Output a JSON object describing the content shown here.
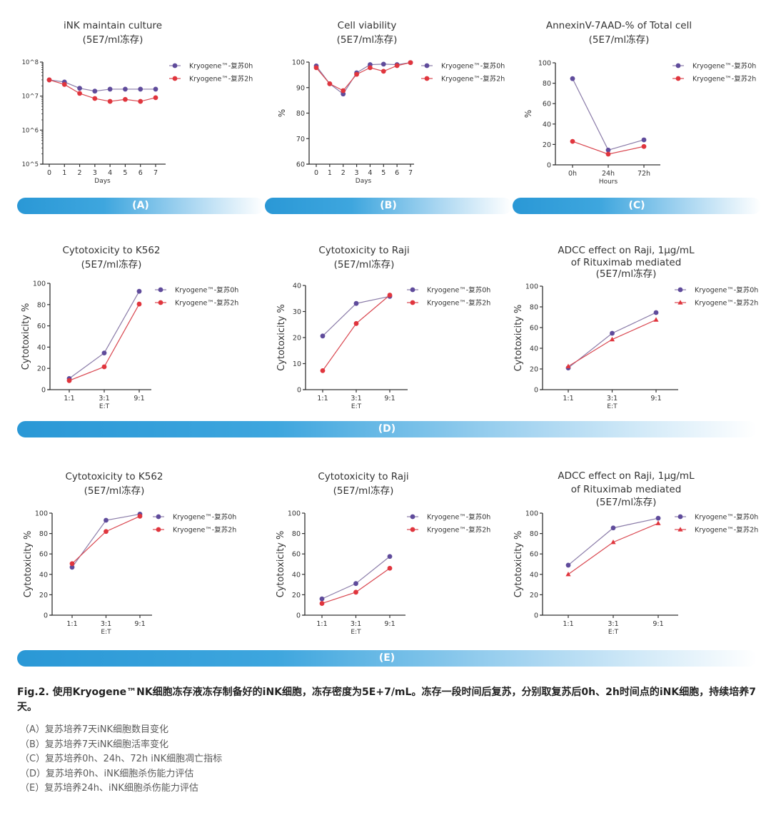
{
  "colors": {
    "series_0h": "#5f4b9b",
    "series_2h": "#e0353d",
    "line_0h": "#8a7ba8",
    "line_2h": "#d9464f",
    "band": "#2a98d6"
  },
  "bands": {
    "A": "(A)",
    "B": "(B)",
    "C": "(C)",
    "D": "(D)",
    "E": "(E)"
  },
  "chart_data": [
    {
      "type": "line",
      "panel": "A",
      "title": [
        "iNK maintain culture",
        "(5E7/ml冻存)"
      ],
      "xlabel": "Days",
      "ylabel": "",
      "x": [
        "0",
        "1",
        "2",
        "3",
        "4",
        "5",
        "6",
        "7"
      ],
      "yscale": "log",
      "ylim": [
        100000,
        100000000
      ],
      "yticks": [
        100000,
        1000000,
        10000000,
        100000000
      ],
      "ytick_labels": [
        "10^5",
        "10^6",
        "10^7",
        "10^8"
      ],
      "legend": "right",
      "series": [
        {
          "name": "Kryogene™-复苏0h",
          "marker": "circle",
          "values": [
            30000000,
            26000000,
            17000000,
            14000000,
            16000000,
            16000000,
            16000000,
            16000000
          ]
        },
        {
          "name": "Kryogene™-复苏2h",
          "marker": "circle",
          "values": [
            30000000,
            22000000,
            12000000,
            8500000,
            7000000,
            8000000,
            7000000,
            9000000
          ]
        }
      ]
    },
    {
      "type": "line",
      "panel": "B",
      "title": [
        "Cell viability",
        "(5E7/ml冻存)"
      ],
      "xlabel": "Days",
      "ylabel": "%",
      "x": [
        "0",
        "1",
        "2",
        "3",
        "4",
        "5",
        "6",
        "7"
      ],
      "yscale": "linear",
      "ylim": [
        60,
        100
      ],
      "yticks": [
        60,
        70,
        80,
        90,
        100
      ],
      "ytick_labels": [
        "60",
        "70",
        "80",
        "90",
        "100"
      ],
      "legend": "right",
      "series": [
        {
          "name": "Kryogene™-复苏0h",
          "marker": "circle",
          "values": [
            98.5,
            91.5,
            87.5,
            95.8,
            99,
            99.2,
            99,
            99.8
          ]
        },
        {
          "name": "Kryogene™-复苏2h",
          "marker": "circle",
          "values": [
            97.8,
            91.5,
            88.8,
            95.2,
            97.8,
            96.4,
            98.6,
            99.8
          ]
        }
      ]
    },
    {
      "type": "line",
      "panel": "C",
      "title": [
        "AnnexinV-7AAD-% of Total cell",
        "(5E7/ml冻存)"
      ],
      "xlabel": "Hours",
      "ylabel": "%",
      "x": [
        "0h",
        "24h",
        "72h"
      ],
      "yscale": "linear",
      "ylim": [
        0,
        100
      ],
      "yticks": [
        0,
        20,
        40,
        60,
        80,
        100
      ],
      "ytick_labels": [
        "0",
        "20",
        "40",
        "60",
        "80",
        "100"
      ],
      "legend": "right",
      "series": [
        {
          "name": "Kryogene™-复苏0h",
          "marker": "circle",
          "values": [
            84.5,
            14.5,
            24.5
          ]
        },
        {
          "name": "Kryogene™-复苏2h",
          "marker": "circle",
          "values": [
            23,
            10.5,
            18
          ]
        }
      ]
    },
    {
      "type": "line",
      "panel": "D1",
      "title": [
        "Cytotoxicity to K562",
        "(5E7/ml冻存)"
      ],
      "xlabel": "E:T",
      "ylabel": "Cytotoxicity %",
      "x": [
        "1:1",
        "3:1",
        "9:1"
      ],
      "yscale": "linear",
      "ylim": [
        0,
        100
      ],
      "yticks": [
        0,
        20,
        40,
        60,
        80,
        100
      ],
      "ytick_labels": [
        "0",
        "20",
        "40",
        "60",
        "80",
        "100"
      ],
      "legend": "right",
      "series": [
        {
          "name": "Kryogene™-复苏0h",
          "marker": "circle",
          "values": [
            10.5,
            34.5,
            92.5
          ]
        },
        {
          "name": "Kryogene™-复苏2h",
          "marker": "circle",
          "values": [
            8.5,
            21.5,
            80.5
          ]
        }
      ]
    },
    {
      "type": "line",
      "panel": "D2",
      "title": [
        "Cytotoxicity to Raji",
        "(5E7/ml冻存)"
      ],
      "xlabel": "E:T",
      "ylabel": "Cytotoxicity %",
      "x": [
        "1:1",
        "3:1",
        "9:1"
      ],
      "yscale": "linear",
      "ylim": [
        0,
        40
      ],
      "yticks": [
        0,
        10,
        20,
        30,
        40
      ],
      "ytick_labels": [
        "0",
        "10",
        "20",
        "30",
        "40"
      ],
      "legend": "right",
      "series": [
        {
          "name": "Kryogene™-复苏0h",
          "marker": "circle",
          "values": [
            20.6,
            33.1,
            35.8
          ]
        },
        {
          "name": "Kryogene™-复苏2h",
          "marker": "circle",
          "values": [
            7.3,
            25.4,
            36.3
          ]
        }
      ]
    },
    {
      "type": "line",
      "panel": "D3",
      "title": [
        "ADCC effect on Raji, 1μg/mL",
        "of Rituximab mediated",
        "(5E7/ml冻存)"
      ],
      "xlabel": "E:T",
      "ylabel": "Cytotoxicity %",
      "x": [
        "1:1",
        "3:1",
        "9:1"
      ],
      "yscale": "linear",
      "ylim": [
        0,
        100
      ],
      "yticks": [
        0,
        20,
        40,
        60,
        80,
        100
      ],
      "ytick_labels": [
        "0",
        "20",
        "40",
        "60",
        "80",
        "100"
      ],
      "legend": "right",
      "series": [
        {
          "name": "Kryogene™-复苏0h",
          "marker": "circle",
          "values": [
            21,
            54.5,
            74.5
          ]
        },
        {
          "name": "Kryogene™-复苏2h",
          "marker": "triangle",
          "values": [
            22.5,
            48.5,
            67.5
          ]
        }
      ]
    },
    {
      "type": "line",
      "panel": "E1",
      "title": [
        "Cytotoxicity to K562",
        "(5E7/ml冻存)"
      ],
      "xlabel": "E:T",
      "ylabel": "Cytotoxicity %",
      "x": [
        "1:1",
        "3:1",
        "9:1"
      ],
      "yscale": "linear",
      "ylim": [
        0,
        100
      ],
      "yticks": [
        0,
        20,
        40,
        60,
        80,
        100
      ],
      "ytick_labels": [
        "0",
        "20",
        "40",
        "60",
        "80",
        "100"
      ],
      "legend": "right",
      "series": [
        {
          "name": "Kryogene™-复苏0h",
          "marker": "circle",
          "values": [
            47,
            93,
            99
          ]
        },
        {
          "name": "Kryogene™-复苏2h",
          "marker": "circle",
          "values": [
            50.5,
            82,
            97
          ]
        }
      ]
    },
    {
      "type": "line",
      "panel": "E2",
      "title": [
        "Cytotoxicity to Raji",
        "(5E7/ml冻存)"
      ],
      "xlabel": "E:T",
      "ylabel": "Cytotoxicity %",
      "x": [
        "1:1",
        "3:1",
        "9:1"
      ],
      "yscale": "linear",
      "ylim": [
        0,
        100
      ],
      "yticks": [
        0,
        20,
        40,
        60,
        80,
        100
      ],
      "ytick_labels": [
        "0",
        "20",
        "40",
        "60",
        "80",
        "100"
      ],
      "legend": "right",
      "series": [
        {
          "name": "Kryogene™-复苏0h",
          "marker": "circle",
          "values": [
            16,
            31,
            57.5
          ]
        },
        {
          "name": "Kryogene™-复苏2h",
          "marker": "circle",
          "values": [
            11.5,
            22.5,
            46
          ]
        }
      ]
    },
    {
      "type": "line",
      "panel": "E3",
      "title": [
        "ADCC effect on Raji, 1μg/mL",
        "of Rituximab mediated",
        "(5E7/ml冻存)"
      ],
      "xlabel": "E:T",
      "ylabel": "Cytotoxicity %",
      "x": [
        "1:1",
        "3:1",
        "9:1"
      ],
      "yscale": "linear",
      "ylim": [
        0,
        100
      ],
      "yticks": [
        0,
        20,
        40,
        60,
        80,
        100
      ],
      "ytick_labels": [
        "0",
        "20",
        "40",
        "60",
        "80",
        "100"
      ],
      "legend": "right",
      "series": [
        {
          "name": "Kryogene™-复苏0h",
          "marker": "circle",
          "values": [
            49,
            85.5,
            95
          ]
        },
        {
          "name": "Kryogene™-复苏2h",
          "marker": "triangle",
          "values": [
            40,
            71.5,
            90
          ]
        }
      ]
    }
  ],
  "caption": {
    "heading": "Fig.2.  使用Kryogene™NK细胞冻存液冻存制备好的iNK细胞，冻存密度为5E+7/mL。冻存一段时间后复苏，分别取复苏后0h、2h时间点的iNK细胞，持续培养7天。",
    "items": [
      "（A）复苏培养7天iNK细胞数目变化",
      "（B）复苏培养7天iNK细胞活率变化",
      "（C）复苏培养0h、24h、72h iNK细胞凋亡指标",
      "（D）复苏培养0h、iNK细胞杀伤能力评估",
      "（E）复苏培养24h、iNK细胞杀伤能力评估"
    ]
  }
}
